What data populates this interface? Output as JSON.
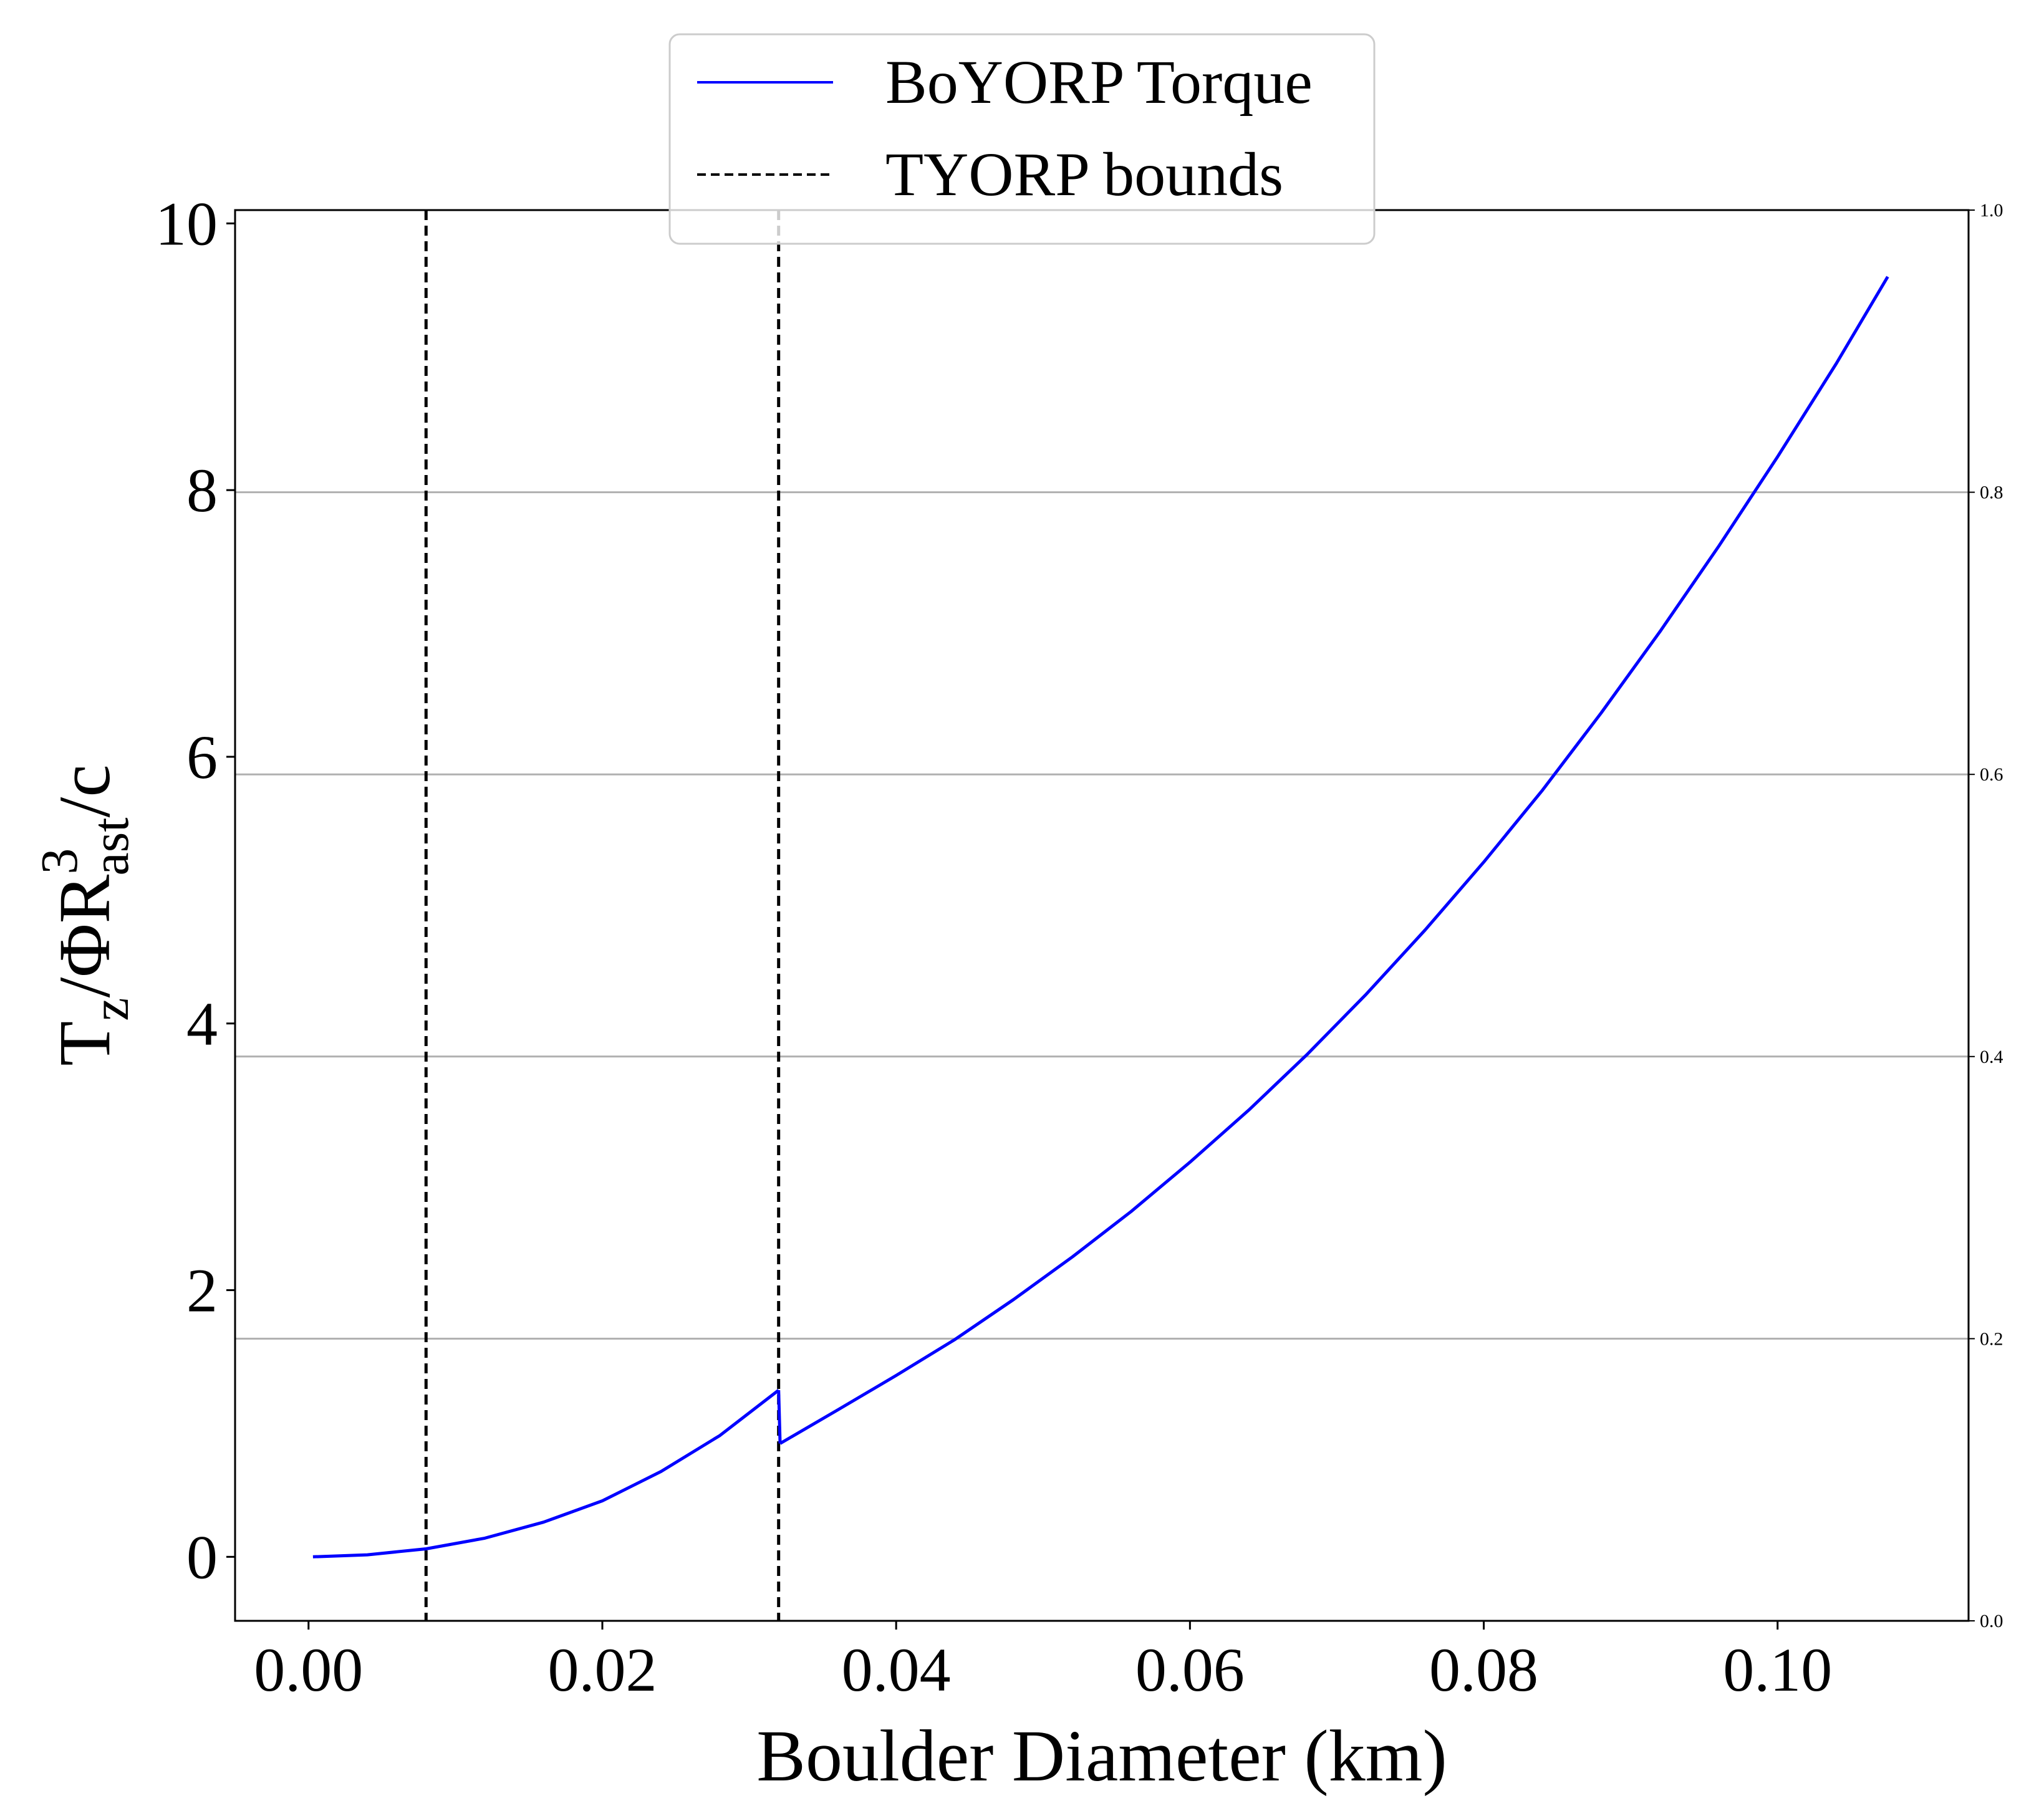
{
  "chart_data": {
    "type": "line",
    "xlabel": "Boulder Diameter (km)",
    "ylabel": {
      "base": "T",
      "sub1": "z",
      "mid": "/ΦR",
      "sup": "3",
      "sub2": "ast",
      "tail": "/c"
    },
    "xlim": [
      -0.005,
      0.113
    ],
    "ylim": [
      -0.48,
      10.1
    ],
    "y2lim": [
      0.0,
      1.0
    ],
    "x_ticks": [
      0.0,
      0.02,
      0.04,
      0.06,
      0.08,
      0.1
    ],
    "x_tick_labels": [
      "0.00",
      "0.02",
      "0.04",
      "0.06",
      "0.08",
      "0.10"
    ],
    "y_ticks": [
      0,
      2,
      4,
      6,
      8,
      10
    ],
    "y_tick_labels": [
      "0",
      "2",
      "4",
      "6",
      "8",
      "10"
    ],
    "y2_ticks": [
      0.0,
      0.2,
      0.4,
      0.6,
      0.8,
      1.0
    ],
    "y2_tick_labels": [
      "0.0",
      "0.2",
      "0.4",
      "0.6",
      "0.8",
      "1.0"
    ],
    "grid": "horizontal lines at right-axis ticks",
    "legend_placement": "top-center",
    "series": [
      {
        "name": "BoYORP Torque",
        "color": "#0000ff",
        "style": "solid",
        "segments": [
          {
            "x": [
              0.0003,
              0.004,
              0.008,
              0.012,
              0.016,
              0.02,
              0.024,
              0.028,
              0.032
            ],
            "y": [
              0.0,
              0.015,
              0.06,
              0.14,
              0.26,
              0.42,
              0.64,
              0.91,
              1.25
            ]
          },
          {
            "x": [
              0.0321,
              0.036,
              0.04,
              0.044,
              0.048,
              0.052,
              0.056,
              0.06,
              0.064,
              0.068,
              0.072,
              0.076,
              0.08,
              0.084,
              0.088,
              0.092,
              0.096,
              0.1,
              0.104,
              0.1075
            ],
            "y": [
              0.85,
              1.1,
              1.36,
              1.63,
              1.93,
              2.25,
              2.59,
              2.96,
              3.35,
              3.77,
              4.22,
              4.7,
              5.21,
              5.75,
              6.33,
              6.94,
              7.58,
              8.25,
              8.95,
              9.6
            ]
          }
        ]
      },
      {
        "name": "TYORP bounds",
        "color": "#000000",
        "style": "dashed",
        "vlines": [
          0.008,
          0.032
        ]
      }
    ]
  }
}
